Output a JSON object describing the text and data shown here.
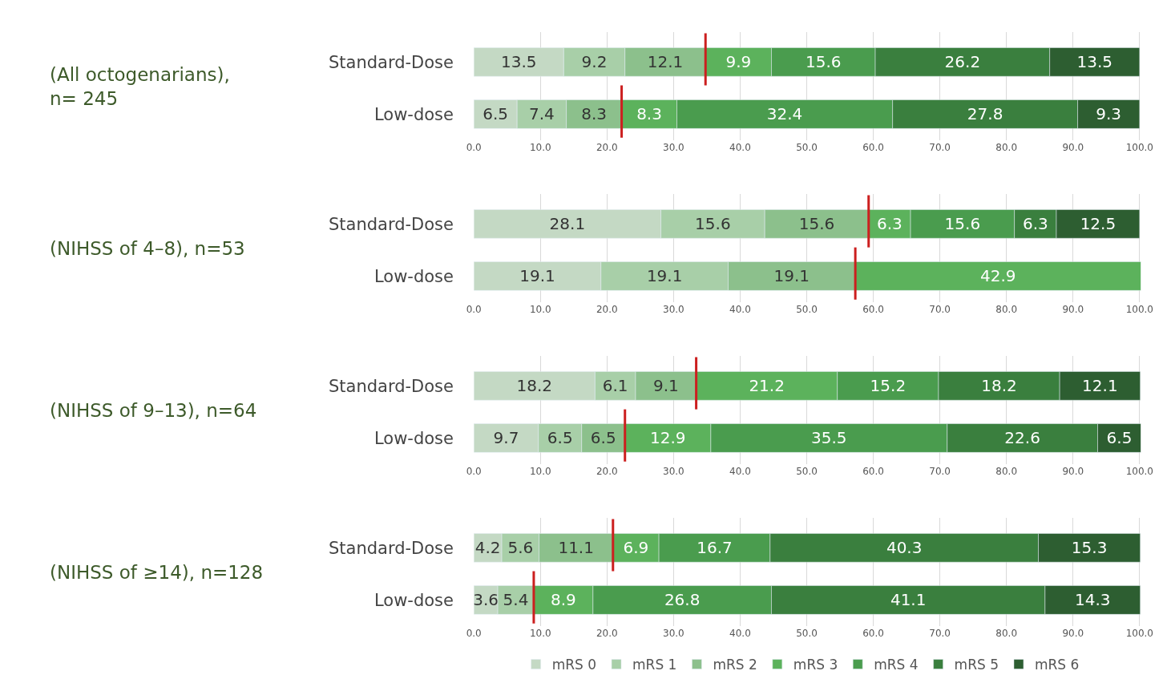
{
  "chart_data": [
    {
      "type": "bar",
      "orientation": "horizontal",
      "stacked": true,
      "data_labels": true,
      "title": "(All octogenarians),\nn= 245",
      "categories": [
        "Standard-Dose",
        "Low-dose"
      ],
      "xlim": [
        0,
        100.2
      ],
      "xticks": [
        {
          "value": 0,
          "label": "0.0"
        },
        {
          "value": 10,
          "label": "10.0"
        },
        {
          "value": 20,
          "label": "20.0"
        },
        {
          "value": 30,
          "label": "30.0"
        },
        {
          "value": 40,
          "label": "40.0"
        },
        {
          "value": 50,
          "label": "50.0"
        },
        {
          "value": 60,
          "label": "60.0"
        },
        {
          "value": 70,
          "label": "70.0"
        },
        {
          "value": 80,
          "label": "80.0"
        },
        {
          "value": 90,
          "label": "90.0"
        },
        {
          "value": 100,
          "label": "100.0"
        }
      ],
      "grid": "x",
      "legend": "bottom",
      "series": [
        {
          "name": "mRS 0",
          "color": "#c4d9c4",
          "values": [
            13.5,
            6.5
          ]
        },
        {
          "name": "mRS 1",
          "color": "#a8cfa8",
          "values": [
            9.2,
            7.4
          ]
        },
        {
          "name": "mRS 2",
          "color": "#8cc08c",
          "values": [
            12.1,
            8.3
          ]
        },
        {
          "name": "mRS 3",
          "color": "#5cb25c",
          "values": [
            9.9,
            8.3
          ]
        },
        {
          "name": "mRS 4",
          "color": "#4a9c4e",
          "values": [
            15.6,
            32.4
          ]
        },
        {
          "name": "mRS 5",
          "color": "#3a7f3e",
          "values": [
            26.2,
            27.8
          ]
        },
        {
          "name": "mRS 6",
          "color": "#2d5e31",
          "values": [
            13.5,
            9.3
          ]
        }
      ],
      "ref_lines": [
        {
          "axis": "x",
          "value": 34.8,
          "color": "#cc1f1f"
        },
        {
          "axis": "x",
          "value": 22.2,
          "color": "#cc1f1f"
        }
      ]
    },
    {
      "type": "bar",
      "orientation": "horizontal",
      "stacked": true,
      "data_labels": true,
      "title": "(NIHSS of 4–8), n=53",
      "categories": [
        "Standard-Dose",
        "Low-dose"
      ],
      "xlim": [
        0,
        100.2
      ],
      "xticks": [
        {
          "value": 0,
          "label": "0.0"
        },
        {
          "value": 10,
          "label": "10.0"
        },
        {
          "value": 20,
          "label": "20.0"
        },
        {
          "value": 30,
          "label": "30.0"
        },
        {
          "value": 40,
          "label": "40.0"
        },
        {
          "value": 50,
          "label": "50.0"
        },
        {
          "value": 60,
          "label": "60.0"
        },
        {
          "value": 70,
          "label": "70.0"
        },
        {
          "value": 80,
          "label": "80.0"
        },
        {
          "value": 90,
          "label": "90.0"
        },
        {
          "value": 100,
          "label": "100.0"
        }
      ],
      "grid": "x",
      "series": [
        {
          "color": "#c4d9c4",
          "values": [
            28.1,
            19.1
          ]
        },
        {
          "color": "#a8cfa8",
          "values": [
            15.6,
            19.1
          ]
        },
        {
          "color": "#8cc08c",
          "values": [
            15.6,
            19.1
          ]
        },
        {
          "color": "#5cb25c",
          "values": [
            6.3,
            42.9
          ]
        },
        {
          "color": "#4a9c4e",
          "values": [
            15.6,
            null
          ]
        },
        {
          "color": "#3a7f3e",
          "values": [
            6.3,
            null
          ]
        },
        {
          "color": "#2d5e31",
          "values": [
            12.5,
            null
          ]
        }
      ],
      "ref_lines": [
        {
          "axis": "x",
          "value": 59.3,
          "color": "#cc1f1f"
        },
        {
          "axis": "x",
          "value": 57.3,
          "color": "#cc1f1f"
        }
      ]
    },
    {
      "type": "bar",
      "orientation": "horizontal",
      "stacked": true,
      "data_labels": true,
      "title": "(NIHSS of 9–13), n=64",
      "categories": [
        "Standard-Dose",
        "Low-dose"
      ],
      "xlim": [
        0,
        100.2
      ],
      "xticks": [
        {
          "value": 0,
          "label": "0.0"
        },
        {
          "value": 10,
          "label": "10.0"
        },
        {
          "value": 20,
          "label": "20.0"
        },
        {
          "value": 30,
          "label": "30.0"
        },
        {
          "value": 40,
          "label": "40.0"
        },
        {
          "value": 50,
          "label": "50.0"
        },
        {
          "value": 60,
          "label": "60.0"
        },
        {
          "value": 70,
          "label": "70.0"
        },
        {
          "value": 80,
          "label": "80.0"
        },
        {
          "value": 90,
          "label": "90.0"
        },
        {
          "value": 100,
          "label": "100.0"
        }
      ],
      "grid": "x",
      "series": [
        {
          "color": "#c4d9c4",
          "values": [
            18.2,
            9.7
          ]
        },
        {
          "color": "#a8cfa8",
          "values": [
            6.1,
            6.5
          ]
        },
        {
          "color": "#8cc08c",
          "values": [
            9.1,
            6.5
          ]
        },
        {
          "color": "#5cb25c",
          "values": [
            21.2,
            12.9
          ]
        },
        {
          "color": "#4a9c4e",
          "values": [
            15.2,
            35.5
          ]
        },
        {
          "color": "#3a7f3e",
          "values": [
            18.2,
            22.6
          ]
        },
        {
          "color": "#2d5e31",
          "values": [
            12.1,
            6.5
          ]
        }
      ],
      "ref_lines": [
        {
          "axis": "x",
          "value": 33.4,
          "color": "#cc1f1f"
        },
        {
          "axis": "x",
          "value": 22.7,
          "color": "#cc1f1f"
        }
      ]
    },
    {
      "type": "bar",
      "orientation": "horizontal",
      "stacked": true,
      "data_labels": true,
      "title": "(NIHSS of ≥14), n=128",
      "categories": [
        "Standard-Dose",
        "Low-dose"
      ],
      "xlim": [
        0,
        100.2
      ],
      "xticks": [
        {
          "value": 0,
          "label": "0.0"
        },
        {
          "value": 10,
          "label": "10.0"
        },
        {
          "value": 20,
          "label": "20.0"
        },
        {
          "value": 30,
          "label": "30.0"
        },
        {
          "value": 40,
          "label": "40.0"
        },
        {
          "value": 50,
          "label": "50.0"
        },
        {
          "value": 60,
          "label": "60.0"
        },
        {
          "value": 70,
          "label": "70.0"
        },
        {
          "value": 80,
          "label": "80.0"
        },
        {
          "value": 90,
          "label": "90.0"
        },
        {
          "value": 100,
          "label": "100.0"
        }
      ],
      "grid": "x",
      "series": [
        {
          "color": "#c4d9c4",
          "values": [
            4.2,
            3.6
          ]
        },
        {
          "color": "#a8cfa8",
          "values": [
            5.6,
            5.4
          ]
        },
        {
          "color": "#8cc08c",
          "values": [
            11.1,
            null
          ]
        },
        {
          "color": "#5cb25c",
          "values": [
            6.9,
            8.9
          ]
        },
        {
          "color": "#4a9c4e",
          "values": [
            16.7,
            26.8
          ]
        },
        {
          "color": "#3a7f3e",
          "values": [
            40.3,
            41.1
          ]
        },
        {
          "color": "#2d5e31",
          "values": [
            15.3,
            14.3
          ]
        }
      ],
      "ref_lines": [
        {
          "axis": "x",
          "value": 20.9,
          "color": "#cc1f1f"
        },
        {
          "axis": "x",
          "value": 9.0,
          "color": "#cc1f1f"
        }
      ]
    }
  ]
}
